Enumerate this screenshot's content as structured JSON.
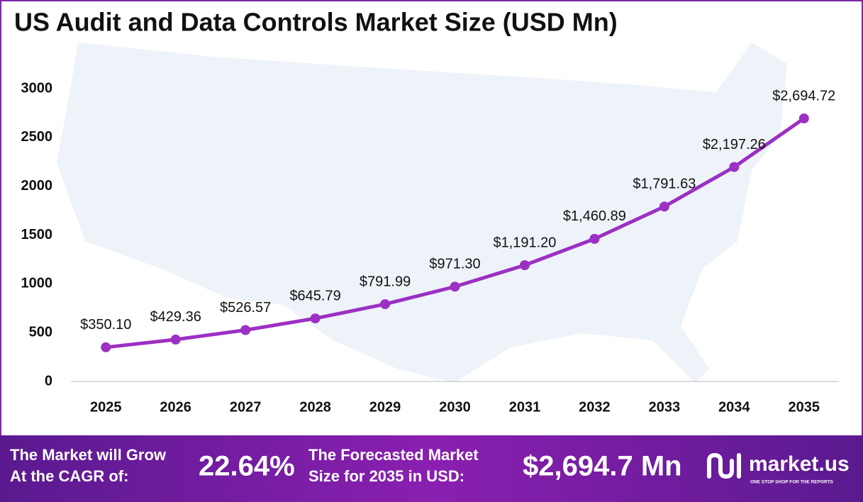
{
  "chart_data": {
    "type": "line",
    "title": "US Audit and Data Controls Market Size (USD Mn)",
    "categories": [
      "2025",
      "2026",
      "2027",
      "2028",
      "2029",
      "2030",
      "2031",
      "2032",
      "2033",
      "2034",
      "2035"
    ],
    "values": [
      350.1,
      429.36,
      526.57,
      645.79,
      791.99,
      971.3,
      1191.2,
      1460.89,
      1791.63,
      2197.26,
      2694.72
    ],
    "value_labels": [
      "$350.10",
      "$429.36",
      "$526.57",
      "$645.79",
      "$791.99",
      "$971.30",
      "$1,191.20",
      "$1,460.89",
      "$1,791.63",
      "$2,197.26",
      "$2,694.72"
    ],
    "color": "#9b30c3",
    "ylim": [
      0,
      3000
    ],
    "yticks": [
      0,
      500,
      1000,
      1500,
      2000,
      2500,
      3000
    ],
    "grid": false
  },
  "footer": {
    "cagr_label": [
      "The Market will Grow",
      "At the CAGR of:"
    ],
    "cagr_value": "22.64%",
    "forecast_label": [
      "The Forecasted Market",
      "Size for 2035 in USD:"
    ],
    "forecast_value": "$2,694.7 Mn",
    "brand": "market.us",
    "tagline": "ONE STOP SHOP FOR THE REPORTS"
  }
}
